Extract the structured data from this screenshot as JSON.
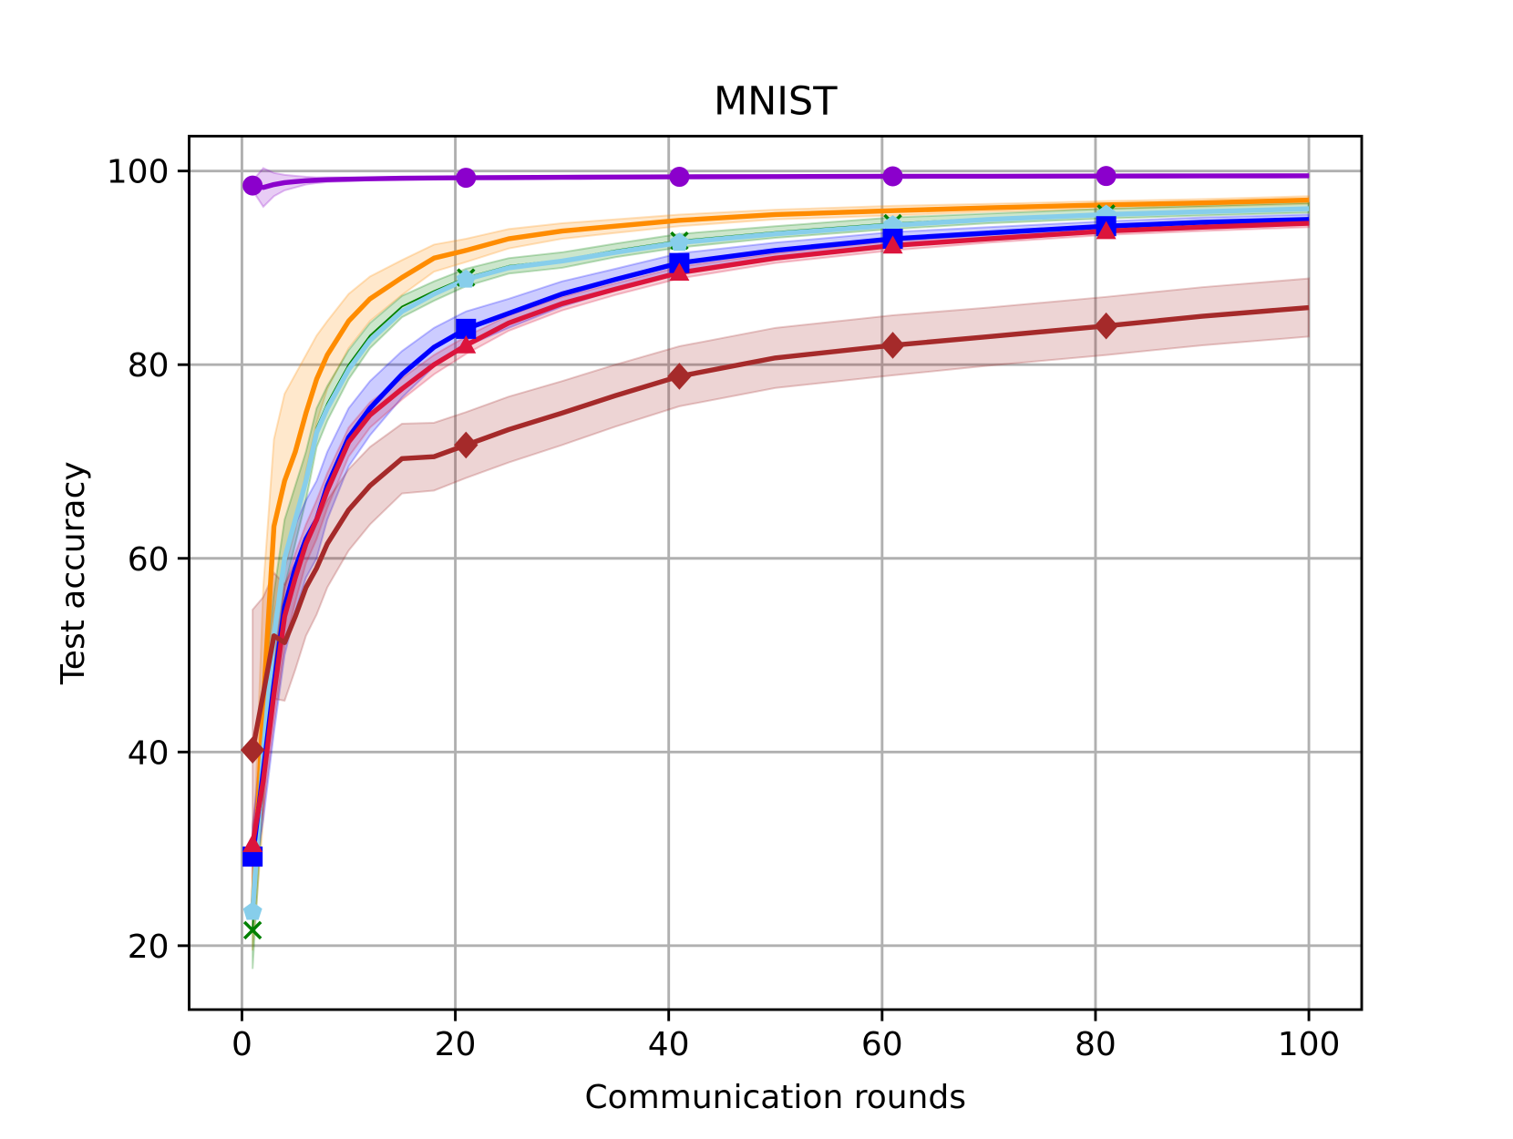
{
  "chart_data": {
    "type": "line",
    "title": "MNIST",
    "xlabel": "Communication rounds",
    "ylabel": "Test accuracy",
    "xlim": [
      -4.95,
      104.95
    ],
    "ylim": [
      13.4,
      103.6
    ],
    "xticks": [
      0,
      20,
      40,
      60,
      80,
      100
    ],
    "yticks": [
      20,
      40,
      60,
      80,
      100
    ],
    "grid": true,
    "legend": "none",
    "x": [
      1,
      2,
      3,
      4,
      5,
      6,
      7,
      8,
      10,
      12,
      15,
      18,
      21,
      25,
      30,
      35,
      41,
      50,
      61,
      70,
      81,
      90,
      100
    ],
    "series": [
      {
        "color": "#8b00cc",
        "marker": "circle",
        "line_width": "normal",
        "values": [
          98.5,
          98.3,
          98.6,
          98.8,
          98.9,
          99.0,
          99.05,
          99.1,
          99.15,
          99.2,
          99.25,
          99.28,
          99.3,
          99.32,
          99.35,
          99.37,
          99.4,
          99.42,
          99.45,
          99.46,
          99.48,
          99.49,
          99.5
        ],
        "std": [
          0.5,
          2.0,
          1.2,
          0.8,
          0.6,
          0.4,
          0.3,
          0.25,
          0.2,
          0.15,
          0.12,
          0.1,
          0.1,
          0.1,
          0.1,
          0.1,
          0.1,
          0.1,
          0.1,
          0.1,
          0.1,
          0.1,
          0.1
        ]
      },
      {
        "color": "#ff8c00",
        "marker": "none",
        "line_width": "normal",
        "values": [
          23.5,
          45,
          63.3,
          68,
          71,
          75,
          78.5,
          81,
          84.5,
          86.8,
          89,
          91,
          91.8,
          93,
          93.8,
          94.3,
          94.9,
          95.5,
          95.9,
          96.2,
          96.5,
          96.7,
          97.0
        ],
        "std": [
          4,
          12,
          9,
          9,
          8,
          6,
          4.5,
          3.5,
          2.8,
          2.3,
          1.8,
          1.4,
          1.2,
          1.0,
          0.8,
          0.7,
          0.6,
          0.5,
          0.5,
          0.4,
          0.4,
          0.4,
          0.4
        ]
      },
      {
        "color": "#008000",
        "marker": "x",
        "line_width": "thin",
        "values": [
          21.6,
          40.5,
          52.5,
          60.5,
          64.5,
          68.5,
          73.5,
          76,
          80,
          83,
          86,
          87.6,
          89.0,
          90.2,
          90.8,
          91.8,
          92.8,
          93.7,
          94.6,
          95.1,
          95.6,
          95.9,
          96.2
        ],
        "std": [
          4,
          5,
          4,
          3.5,
          3,
          2.5,
          2,
          1.8,
          1.5,
          1.3,
          1.1,
          1.0,
          0.9,
          0.8,
          0.8,
          0.7,
          0.7,
          0.6,
          0.6,
          0.5,
          0.5,
          0.5,
          0.5
        ]
      },
      {
        "color": "#87ceeb",
        "marker": "pentagon",
        "line_width": "normal",
        "values": [
          23.5,
          40,
          52,
          60,
          64,
          68,
          73,
          75.5,
          79.5,
          82.5,
          85.5,
          87.3,
          88.8,
          90,
          90.7,
          91.6,
          92.6,
          93.5,
          94.4,
          95,
          95.5,
          95.8,
          96.1
        ],
        "std": [
          0,
          0,
          0,
          0,
          0,
          0,
          0,
          0,
          0,
          0,
          0,
          0,
          0,
          0,
          0,
          0,
          0,
          0,
          0,
          0,
          0,
          0,
          0
        ]
      },
      {
        "color": "#0000ff",
        "marker": "square",
        "line_width": "normal",
        "values": [
          29.2,
          38,
          47,
          55,
          59,
          62,
          64,
          67.5,
          72.5,
          75.5,
          79,
          81.8,
          83.7,
          85.3,
          87.3,
          88.8,
          90.5,
          91.8,
          93,
          93.6,
          94.3,
          94.7,
          95.0
        ],
        "std": [
          3,
          5,
          5,
          5,
          4.5,
          4,
          4,
          3.5,
          3,
          2.8,
          2.4,
          2,
          1.8,
          1.5,
          1.3,
          1.1,
          1.0,
          0.8,
          0.7,
          0.6,
          0.5,
          0.5,
          0.5
        ]
      },
      {
        "color": "#dc143c",
        "marker": "triangle",
        "line_width": "normal",
        "values": [
          30.5,
          37,
          46,
          54,
          58,
          61.5,
          64,
          67,
          72,
          74.8,
          77.5,
          80,
          82,
          84.3,
          86.3,
          87.8,
          89.5,
          91,
          92.3,
          93,
          93.8,
          94.2,
          94.6
        ],
        "std": [
          2,
          3,
          3,
          3,
          2.5,
          2,
          2,
          1.8,
          1.5,
          1.3,
          1.1,
          1.0,
          0.9,
          0.8,
          0.7,
          0.6,
          0.6,
          0.5,
          0.5,
          0.4,
          0.4,
          0.4,
          0.4
        ]
      },
      {
        "color": "#a52a2a",
        "marker": "diamond",
        "line_width": "normal",
        "values": [
          40.2,
          46,
          52,
          51.3,
          54,
          57,
          59,
          61.5,
          65,
          67.5,
          70.3,
          70.5,
          71.7,
          73.3,
          75,
          76.8,
          78.8,
          80.7,
          82,
          82.9,
          84,
          85,
          85.9
        ],
        "std": [
          14.5,
          10,
          6.5,
          6,
          5.5,
          5,
          4.8,
          4.5,
          4.2,
          4,
          3.6,
          3.5,
          3.4,
          3.4,
          3.3,
          3.2,
          3.1,
          3.1,
          3.1,
          3.0,
          3.0,
          3.0,
          3.0
        ]
      }
    ],
    "marker_x": [
      1,
      21,
      41,
      61,
      81
    ]
  }
}
